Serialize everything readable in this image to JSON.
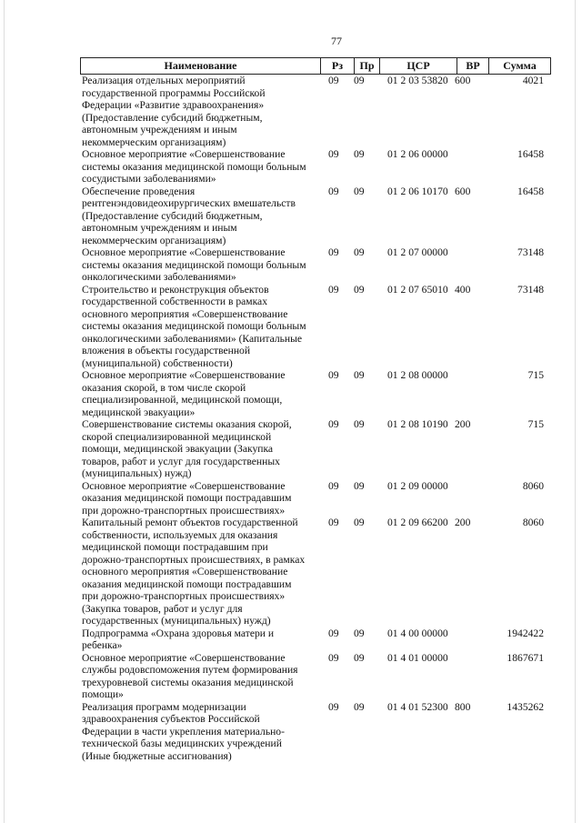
{
  "page_number": "77",
  "columns": {
    "name": "Наименование",
    "rz": "Рз",
    "pr": "Пр",
    "csr": "ЦСР",
    "vr": "ВР",
    "sum": "Сумма"
  },
  "rows": [
    {
      "lines": [
        "Реализация отдельных мероприятий",
        "государственной программы Российской",
        "Федерации «Развитие здравоохранения»",
        "(Предоставление субсидий бюджетным,",
        "автономным учреждениям и иным",
        "некоммерческим организациям)"
      ],
      "rz": "09",
      "pr": "09",
      "csr": "01 2 03 53820",
      "vr": "600",
      "sum": "4021"
    },
    {
      "lines": [
        "Основное мероприятие «Совершенствование",
        "системы оказания медицинской помощи больным",
        "сосудистыми заболеваниями»"
      ],
      "rz": "09",
      "pr": "09",
      "csr": "01 2 06 00000",
      "vr": "",
      "sum": "16458"
    },
    {
      "lines": [
        "Обеспечение проведения",
        "рентгенэндовидеохирургических вмешательств",
        "(Предоставление субсидий бюджетным,",
        "автономным учреждениям и иным",
        "некоммерческим организациям)"
      ],
      "rz": "09",
      "pr": "09",
      "csr": "01 2 06 10170",
      "vr": "600",
      "sum": "16458"
    },
    {
      "lines": [
        "Основное мероприятие «Совершенствование",
        "системы оказания медицинской помощи больным",
        "онкологическими заболеваниями»"
      ],
      "rz": "09",
      "pr": "09",
      "csr": "01 2 07 00000",
      "vr": "",
      "sum": "73148"
    },
    {
      "lines": [
        "Строительство и реконструкция объектов",
        "государственной собственности в рамках",
        "основного мероприятия «Совершенствование",
        "системы оказания медицинской помощи больным",
        "онкологическими заболеваниями» (Капитальные",
        "вложения в объекты государственной",
        "(муниципальной) собственности)"
      ],
      "rz": "09",
      "pr": "09",
      "csr": "01 2 07 65010",
      "vr": "400",
      "sum": "73148"
    },
    {
      "lines": [
        "Основное мероприятие «Совершенствование",
        "оказания скорой, в том числе скорой",
        "специализированной, медицинской помощи,",
        "медицинской эвакуации»"
      ],
      "rz": "09",
      "pr": "09",
      "csr": "01 2 08 00000",
      "vr": "",
      "sum": "715"
    },
    {
      "lines": [
        "Совершенствование системы оказания скорой,",
        "скорой специализированной медицинской",
        "помощи, медицинской эвакуации (Закупка",
        "товаров, работ и услуг для государственных",
        "(муниципальных) нужд)"
      ],
      "rz": "09",
      "pr": "09",
      "csr": "01 2 08 10190",
      "vr": "200",
      "sum": "715"
    },
    {
      "lines": [
        "Основное мероприятие «Совершенствование",
        "оказания медицинской помощи пострадавшим",
        "при дорожно-транспортных происшествиях»"
      ],
      "rz": "09",
      "pr": "09",
      "csr": "01 2 09 00000",
      "vr": "",
      "sum": "8060"
    },
    {
      "lines": [
        "Капитальный ремонт объектов государственной",
        "собственности, используемых для оказания",
        "медицинской помощи пострадавшим при",
        "дорожно-транспортных происшествиях, в рамках",
        "основного мероприятия «Совершенствование",
        "оказания медицинской помощи пострадавшим",
        "при дорожно-транспортных происшествиях»",
        "(Закупка товаров, работ и услуг для",
        "государственных (муниципальных) нужд)"
      ],
      "rz": "09",
      "pr": "09",
      "csr": "01 2 09 66200",
      "vr": "200",
      "sum": "8060"
    },
    {
      "lines": [
        "Подпрограмма «Охрана здоровья матери и",
        "ребенка»"
      ],
      "rz": "09",
      "pr": "09",
      "csr": "01 4 00 00000",
      "vr": "",
      "sum": "1942422"
    },
    {
      "lines": [
        "Основное мероприятие «Совершенствование",
        "службы родовспоможения путем формирования",
        "трехуровневой системы оказания медицинской",
        "помощи»"
      ],
      "rz": "09",
      "pr": "09",
      "csr": "01 4 01 00000",
      "vr": "",
      "sum": "1867671"
    },
    {
      "lines": [
        "Реализация программ модернизации",
        "здравоохранения субъектов Российской",
        "Федерации в части укрепления материально-",
        "технической базы медицинских учреждений",
        "(Иные бюджетные ассигнования)"
      ],
      "rz": "09",
      "pr": "09",
      "csr": "01 4 01 52300",
      "vr": "800",
      "sum": "1435262"
    }
  ]
}
